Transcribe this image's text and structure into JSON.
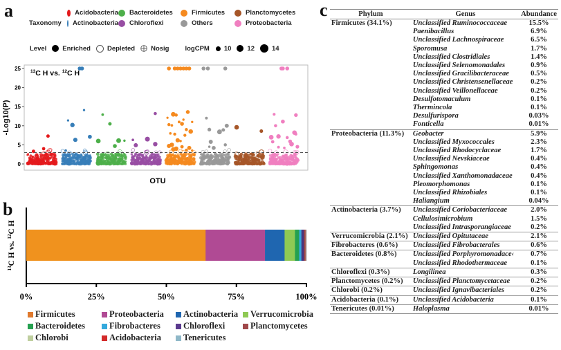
{
  "panels": {
    "a": "a",
    "b": "b",
    "c": "c"
  },
  "panel_a": {
    "taxonomy_title": "Taxonomy",
    "taxonomy": [
      {
        "name": "Acidobacteria",
        "color": "#e41a1c"
      },
      {
        "name": "Bacteroidetes",
        "color": "#4daf4a"
      },
      {
        "name": "Firmicutes",
        "color": "#f58a1f"
      },
      {
        "name": "Planctomycetes",
        "color": "#a65628"
      },
      {
        "name": "Actinobacteria",
        "color": "#377eb8"
      },
      {
        "name": "Chloroflexi",
        "color": "#984ea3"
      },
      {
        "name": "Others",
        "color": "#999999"
      },
      {
        "name": "Proteobacteria",
        "color": "#f07fc0"
      }
    ],
    "level_title": "Level",
    "levels": [
      "Enriched",
      "Depleted",
      "Nosig"
    ],
    "logcpm_title": "logCPM",
    "logcpm_values": [
      "10",
      "12",
      "14"
    ]
  },
  "chart_data": [
    {
      "type": "scatter",
      "title": "13C H vs. 12C H",
      "xlabel": "OTU",
      "ylabel": "-Log10(P)",
      "ylim": [
        0,
        25
      ],
      "yticks": [
        0,
        5,
        10,
        15,
        20,
        25
      ],
      "threshold": 3.0,
      "grid": false,
      "groups": [
        {
          "name": "Acidobacteria",
          "color": "#e41a1c",
          "sig_points": [
            [
              0.2,
              3.3
            ],
            [
              0.7,
              7.3
            ],
            [
              0.55,
              4.0
            ]
          ]
        },
        {
          "name": "Actinobacteria",
          "color": "#377eb8",
          "sig_points": [
            [
              0.2,
              11.4
            ],
            [
              0.35,
              10.2
            ],
            [
              0.45,
              6.3
            ],
            [
              0.6,
              25
            ],
            [
              0.68,
              25
            ],
            [
              0.75,
              14.1
            ],
            [
              0.95,
              7.1
            ],
            [
              0.12,
              3.5
            ]
          ]
        },
        {
          "name": "Bacteroidetes",
          "color": "#4daf4a",
          "sig_points": [
            [
              0.05,
              6.0
            ],
            [
              0.2,
              12.9
            ],
            [
              0.45,
              10.5
            ],
            [
              0.75,
              6.1
            ],
            [
              0.95,
              6.1
            ],
            [
              0.62,
              4.7
            ]
          ]
        },
        {
          "name": "Chloroflexi",
          "color": "#984ea3",
          "sig_points": [
            [
              0.05,
              6.3
            ],
            [
              0.15,
              4.9
            ],
            [
              0.55,
              6.5
            ],
            [
              0.82,
              5.2
            ],
            [
              0.82,
              13.2
            ]
          ]
        },
        {
          "name": "Firmicutes",
          "color": "#f58a1f",
          "sig_points": [
            [
              0.1,
              25
            ],
            [
              0.3,
              25
            ],
            [
              0.4,
              25
            ],
            [
              0.5,
              25
            ],
            [
              0.6,
              25
            ],
            [
              0.7,
              25
            ],
            [
              0.8,
              25
            ],
            [
              0.05,
              12.1
            ],
            [
              0.1,
              10.3
            ],
            [
              0.2,
              10.1
            ],
            [
              0.25,
              13.0
            ],
            [
              0.35,
              12.8
            ],
            [
              0.45,
              11.0
            ],
            [
              0.55,
              10.5
            ],
            [
              0.6,
              11.6
            ],
            [
              0.7,
              9.0
            ],
            [
              0.75,
              13.6
            ],
            [
              0.85,
              8.5
            ],
            [
              0.9,
              11.0
            ],
            [
              0.3,
              7.8
            ],
            [
              0.15,
              8.0
            ],
            [
              0.4,
              6.2
            ],
            [
              0.5,
              6.0
            ],
            [
              0.65,
              7.5
            ],
            [
              0.2,
              5.0
            ],
            [
              0.55,
              4.5
            ],
            [
              0.35,
              4.0
            ],
            [
              0.8,
              4.2
            ],
            [
              0.1,
              4.7
            ],
            [
              0.9,
              3.5
            ],
            [
              0.25,
              3.8
            ],
            [
              0.7,
              3.6
            ]
          ]
        },
        {
          "name": "Others",
          "color": "#999999",
          "sig_points": [
            [
              0.1,
              25
            ],
            [
              0.25,
              25
            ],
            [
              0.85,
              25
            ],
            [
              0.2,
              12.0
            ],
            [
              0.3,
              9.0
            ],
            [
              0.65,
              8.4
            ],
            [
              0.78,
              8.9
            ],
            [
              0.9,
              10.0
            ],
            [
              0.85,
              5.0
            ],
            [
              0.3,
              4.5
            ],
            [
              0.45,
              4.2
            ],
            [
              0.35,
              5.8
            ]
          ]
        },
        {
          "name": "Planctomycetes",
          "color": "#a65628",
          "sig_points": [
            [
              0.05,
              9.6
            ],
            [
              0.9,
              8.6
            ]
          ]
        },
        {
          "name": "Proteobacteria",
          "color": "#f07fc0",
          "sig_points": [
            [
              0.4,
              25
            ],
            [
              0.45,
              25
            ],
            [
              0.6,
              25
            ],
            [
              0.15,
              13.0
            ],
            [
              0.45,
              11.1
            ],
            [
              0.9,
              12.8
            ],
            [
              0.2,
              10.0
            ],
            [
              0.05,
              7.0
            ],
            [
              0.3,
              7.2
            ],
            [
              0.6,
              6.9
            ],
            [
              0.85,
              8.2
            ],
            [
              0.9,
              7.8
            ],
            [
              0.7,
              5.9
            ],
            [
              0.75,
              5.2
            ],
            [
              0.3,
              4.4
            ],
            [
              0.95,
              4.5
            ],
            [
              0.1,
              5.8
            ],
            [
              0.5,
              4.2
            ]
          ]
        }
      ]
    },
    {
      "type": "bar",
      "orientation": "horizontal-stacked",
      "ylabel": "13C H vs. 12C H",
      "xlim": [
        0,
        100
      ],
      "xticks": [
        "0%",
        "25%",
        "50%",
        "75%",
        "100%"
      ],
      "category": "13C H vs. 12C H",
      "series": [
        {
          "name": "Firmicutes",
          "value": 64.0,
          "color": "#f0921e"
        },
        {
          "name": "Proteobacteria",
          "value": 21.2,
          "color": "#b04a94"
        },
        {
          "name": "Actinobacteria",
          "value": 7.0,
          "color": "#1f66b0"
        },
        {
          "name": "Verrucomicrobia",
          "value": 3.7,
          "color": "#8fc954"
        },
        {
          "name": "Bacteroidetes",
          "value": 1.5,
          "color": "#25a050"
        },
        {
          "name": "Fibrobacteres",
          "value": 0.8,
          "color": "#34a9dc"
        },
        {
          "name": "Chloroflexi",
          "value": 0.9,
          "color": "#4a357e"
        },
        {
          "name": "Planctomycetes",
          "value": 0.6,
          "color": "#a0484a"
        },
        {
          "name": "Chlorobi",
          "value": 0.1,
          "color": "#bfcf9f"
        },
        {
          "name": "Acidobacteria",
          "value": 0.1,
          "color": "#d32a2a"
        },
        {
          "name": "Tenericutes",
          "value": 0.1,
          "color": "#8fb8c8"
        }
      ],
      "legend": [
        "Firmicutes",
        "Proteobacteria",
        "Actinobacteria",
        "Verrucomicrobia",
        "Bacteroidetes",
        "Fibrobacteres",
        "Chloroflexi",
        "Planctomycetes",
        "Chlorobi",
        "Acidobacteria",
        "Tenericutes"
      ],
      "legend_colors": [
        "#e07a2e",
        "#b04a94",
        "#1f66b0",
        "#8fc954",
        "#25a050",
        "#34a9dc",
        "#5a3a8e",
        "#a0484a",
        "#bfcf9f",
        "#d32a2a",
        "#8fb8c8"
      ],
      "legend_position": "bottom"
    },
    {
      "type": "table",
      "headers": [
        "Phylum",
        "Genus",
        "Abundance"
      ],
      "groups": [
        {
          "phylum": "Firmicutes (34.1%)",
          "rows": [
            [
              "Unclassified Ruminococcaceae",
              "15.5%"
            ],
            [
              "Paenibacillus",
              "6.9%"
            ],
            [
              "Unclassified Lachnospiraceae",
              "6.5%"
            ],
            [
              "Sporomusa",
              "1.7%"
            ],
            [
              "Unclassified Clostridiales",
              "1.4%"
            ],
            [
              "Unclassified Selenomonadales",
              "0.9%"
            ],
            [
              "Unclassified Gracilibacteraceae",
              "0.5%"
            ],
            [
              "Unclassified Christensenellaceae",
              "0.2%"
            ],
            [
              "Unclassified Veillonellaceae",
              "0.2%"
            ],
            [
              "Desulfotomaculum",
              "0.1%"
            ],
            [
              "Thermincola",
              "0.1%"
            ],
            [
              "Desulfurispora",
              "0.03%"
            ],
            [
              "Fonticella",
              "0.01%"
            ]
          ]
        },
        {
          "phylum": "Proteobacteria (11.3%)",
          "rows": [
            [
              "Geobacter",
              "5.9%"
            ],
            [
              "Unclassified Myxococcales",
              "2.3%"
            ],
            [
              "Unclassified Rhodocyclaceae",
              "1.7%"
            ],
            [
              "Unclassified Nevskiaceae",
              "0.4%"
            ],
            [
              "Sphingomonas",
              "0.4%"
            ],
            [
              "Unclassified Xanthomonadaceae",
              "0.4%"
            ],
            [
              "Pleomorphomonas",
              "0.1%"
            ],
            [
              "Unclassified Rhizobiales",
              "0.1%"
            ],
            [
              "Haliangium",
              "0.04%"
            ]
          ]
        },
        {
          "phylum": "Actinobacteria (3.7%)",
          "rows": [
            [
              "Unclassified Coriobacteriaceae",
              "2.0%"
            ],
            [
              "Cellulosimicrobium",
              "1.5%"
            ],
            [
              "Unclassified Intrasporangiaceae",
              "0.2%"
            ]
          ]
        },
        {
          "phylum": "Verrucomicrobia (2.1%)",
          "rows": [
            [
              "Unclassified Opitutaceae",
              "2.1%"
            ]
          ]
        },
        {
          "phylum": "Fibrobacteres (0.6%)",
          "rows": [
            [
              "Unclassified Fibrobacterales",
              "0.6%"
            ]
          ]
        },
        {
          "phylum": "Bacteroidetes (0.8%)",
          "rows": [
            [
              "Unclassified Porphyromonadace‹",
              "0.7%"
            ],
            [
              "Unclassified Rhodothermaceae",
              "0.1%"
            ]
          ]
        },
        {
          "phylum": "Chloroflexi (0.3%)",
          "rows": [
            [
              "Longilinea",
              "0.3%"
            ]
          ]
        },
        {
          "phylum": "Planctomycetes (0.2%)",
          "rows": [
            [
              "Unclassified Planctomycetaceae",
              "0.2%"
            ]
          ]
        },
        {
          "phylum": "Chlorobi (0.2%)",
          "rows": [
            [
              "Unclassified Ignavibacteriales",
              "0.2%"
            ]
          ]
        },
        {
          "phylum": "Acidobacteria (0.1%)",
          "rows": [
            [
              "Unclassified Acidobacteria",
              "0.1%"
            ]
          ]
        },
        {
          "phylum": "Tenericutes (0.01%)",
          "rows": [
            [
              "Haloplasma",
              "0.01%"
            ]
          ]
        }
      ]
    }
  ]
}
